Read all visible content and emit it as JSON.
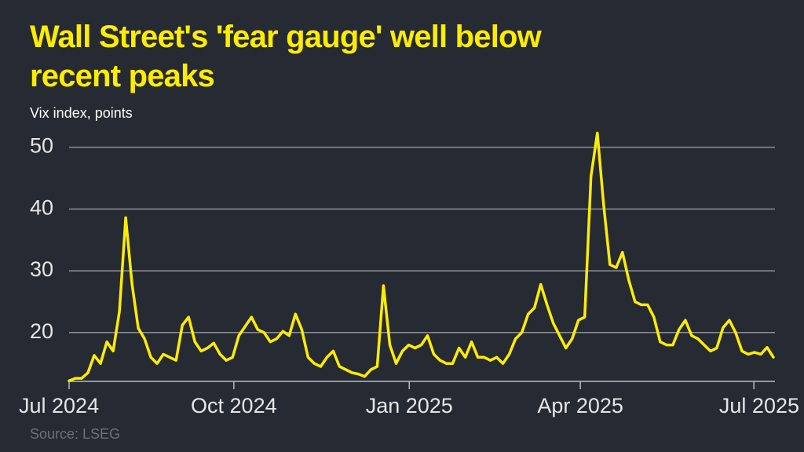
{
  "chart_data": {
    "type": "line",
    "title": "Wall Street's 'fear gauge' well below recent peaks",
    "subtitle": "Vix index, points",
    "source": "Source: LSEG",
    "color": "#ffec00",
    "values": [
      12.2,
      12.6,
      12.6,
      13.5,
      16.3,
      15.0,
      18.5,
      17.0,
      23.4,
      38.6,
      27.9,
      20.7,
      19.0,
      16.0,
      15.0,
      16.5,
      16.0,
      15.5,
      21.2,
      22.5,
      18.5,
      17.0,
      17.5,
      18.3,
      16.5,
      15.5,
      16.0,
      19.5,
      21.0,
      22.5,
      20.5,
      20.0,
      18.5,
      19.0,
      20.2,
      19.5,
      23.0,
      20.5,
      16.0,
      15.0,
      14.5,
      16.0,
      17.0,
      14.5,
      14.0,
      13.5,
      13.3,
      12.9,
      14.0,
      14.5,
      27.6,
      18.0,
      15.0,
      17.0,
      18.0,
      17.5,
      18.0,
      19.5,
      16.5,
      15.5,
      15.0,
      15.0,
      17.5,
      16.0,
      18.5,
      16.0,
      16.0,
      15.5,
      16.0,
      15.0,
      16.5,
      19.0,
      20.0,
      23.0,
      24.0,
      27.8,
      24.5,
      21.5,
      19.5,
      17.5,
      19.0,
      22.0,
      22.5,
      45.3,
      52.3,
      40.7,
      31.0,
      30.5,
      33.0,
      28.5,
      25.0,
      24.5,
      24.5,
      22.5,
      18.5,
      18.0,
      18.0,
      20.5,
      22.0,
      19.5,
      19.0,
      18.0,
      17.0,
      17.5,
      20.8,
      22.0,
      20.0,
      17.0,
      16.5,
      16.8,
      16.5,
      17.6,
      16.0
    ],
    "xlim": [
      0,
      112
    ],
    "xticks": [
      {
        "value": 0,
        "label": "Jul 2024"
      },
      {
        "value": 26.2,
        "label": "Oct 2024"
      },
      {
        "value": 54.1,
        "label": "Jan 2025"
      },
      {
        "value": 81.3,
        "label": "Apr 2025"
      },
      {
        "value": 108.9,
        "label": "Jul 2025"
      }
    ],
    "ylim": [
      12.1,
      53
    ],
    "yticks": [
      20,
      30,
      40,
      50
    ],
    "grid": true
  }
}
